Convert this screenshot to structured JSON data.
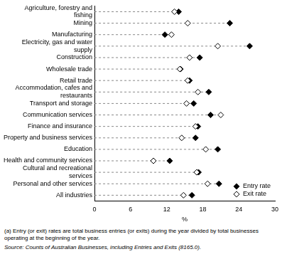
{
  "chart_data": {
    "type": "dot",
    "categories": [
      "Agriculture, forestry and fishing",
      "Mining",
      "Manufacturing",
      "Electricity, gas and water supply",
      "Construction",
      "Wholesale trade",
      "Retail trade",
      "Accommodation, cafes and restaurants",
      "Transport and storage",
      "Communication services",
      "Finance and insurance",
      "Property and business services",
      "Education",
      "Health and community services",
      "Cultural and recreational services",
      "Personal and other services",
      "All industries"
    ],
    "series": [
      {
        "name": "Entry rate",
        "color": "#000000",
        "marker": "filled_diamond",
        "values": [
          14,
          22.5,
          11.7,
          25.8,
          17.5,
          14.3,
          15.8,
          19,
          16.5,
          19.3,
          17.2,
          16.8,
          20.5,
          12.5,
          17.3,
          20.7,
          16.2
        ]
      },
      {
        "name": "Exit rate",
        "color": "#000000",
        "marker": "open_diamond",
        "values": [
          13.3,
          15.5,
          12.8,
          20.5,
          15.8,
          14.2,
          15.5,
          17.2,
          15.3,
          21,
          16.8,
          14.5,
          18.5,
          9.8,
          17,
          18.8,
          14.8
        ]
      }
    ],
    "x_label": "%",
    "xlim": [
      0,
      30
    ],
    "xticks": [
      0,
      6,
      12,
      18,
      24,
      30
    ],
    "orientation": "horizontal",
    "grid": false,
    "legend": "lower right",
    "line_style": "dashed",
    "footnote": "(a) Entry (or exit) rates are total business entries (or exits) during the year divided by total businesses operating at the beginning of the year.",
    "source": "Source: Counts of Australian Businesses, including Entries and Exits (8165.0)."
  }
}
